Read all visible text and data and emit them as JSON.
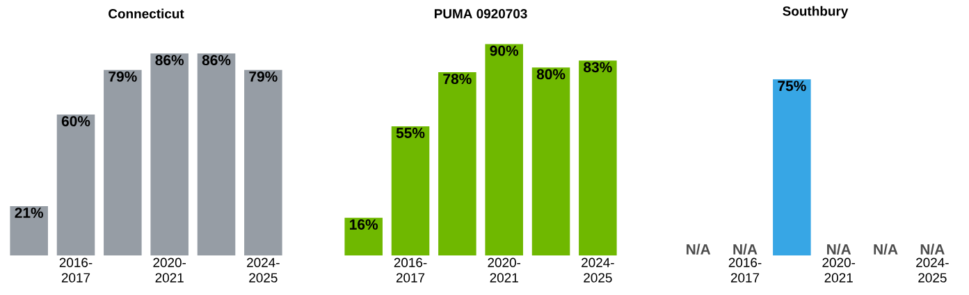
{
  "chart_data": [
    {
      "type": "bar",
      "title": "Connecticut",
      "categories": [
        null,
        "2016-2017",
        null,
        "2020-2021",
        null,
        "2024-2025"
      ],
      "values": [
        21,
        60,
        79,
        86,
        86,
        79
      ],
      "color": "#969da5",
      "value_labels": [
        "21%",
        "60%",
        "79%",
        "86%",
        "86%",
        "79%"
      ]
    },
    {
      "type": "bar",
      "title": "PUMA 0920703",
      "categories": [
        null,
        "2016-2017",
        null,
        "2020-2021",
        null,
        "2024-2025"
      ],
      "values": [
        16,
        55,
        78,
        90,
        80,
        83
      ],
      "color": "#6fb800",
      "value_labels": [
        "16%",
        "55%",
        "78%",
        "90%",
        "80%",
        "83%"
      ]
    },
    {
      "type": "bar",
      "title": "Southbury",
      "categories": [
        null,
        "2016-2017",
        null,
        "2020-2021",
        null,
        "2024-2025"
      ],
      "values": [
        null,
        null,
        75,
        null,
        null,
        null
      ],
      "color": "#37a6e5",
      "value_labels": [
        "N/A",
        "N/A",
        "75%",
        "N/A",
        "N/A",
        "N/A"
      ]
    }
  ]
}
